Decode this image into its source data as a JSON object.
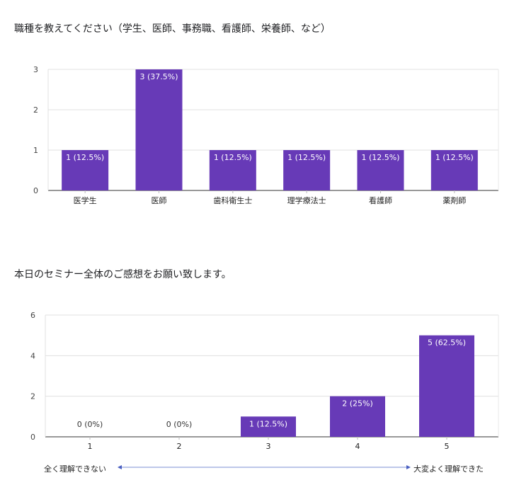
{
  "chart_data": [
    {
      "type": "bar",
      "title": "職種を教えてください（学生、医師、事務職、看護師、栄養師、など）",
      "categories": [
        "医学生",
        "医師",
        "歯科衛生士",
        "理学療法士",
        "看護師",
        "薬剤師"
      ],
      "values": [
        1,
        3,
        1,
        1,
        1,
        1
      ],
      "data_labels": [
        "1 (12.5%)",
        "3 (37.5%)",
        "1 (12.5%)",
        "1 (12.5%)",
        "1 (12.5%)",
        "1 (12.5%)"
      ],
      "ylim": [
        0,
        3
      ],
      "yticks": [
        0,
        1,
        2,
        3
      ],
      "grid": true,
      "bar_color": "#673ab7"
    },
    {
      "type": "bar",
      "title": "本日のセミナー全体のご感想をお願い致します。",
      "categories": [
        "1",
        "2",
        "3",
        "4",
        "5"
      ],
      "values": [
        0,
        0,
        1,
        2,
        5
      ],
      "data_labels": [
        "0 (0%)",
        "0 (0%)",
        "1 (12.5%)",
        "2 (25%)",
        "5 (62.5%)"
      ],
      "ylim": [
        0,
        6
      ],
      "yticks": [
        0,
        2,
        4,
        6
      ],
      "grid": true,
      "bar_color": "#673ab7",
      "scale_low_label": "全く理解できない",
      "scale_high_label": "大変よく理解できた"
    }
  ]
}
